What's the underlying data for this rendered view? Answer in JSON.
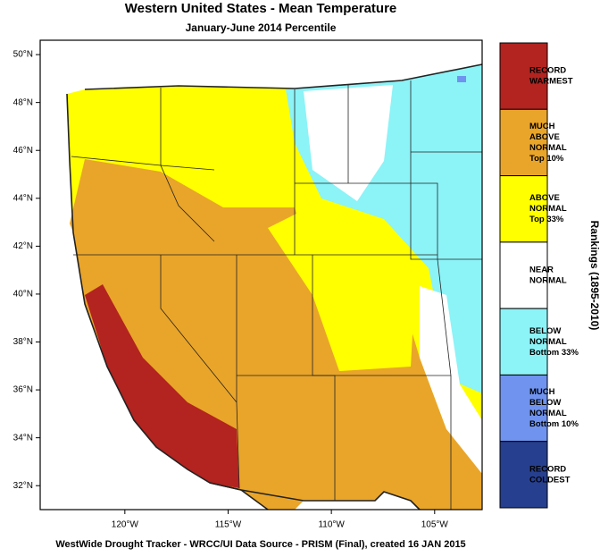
{
  "header": {
    "title": "Western United States - Mean Temperature",
    "subtitle": "January-June 2014 Percentile"
  },
  "map": {
    "lon_range": [
      -124.1,
      -102.7
    ],
    "lat_range": [
      31,
      50.6
    ],
    "lat_ticks": [
      {
        "value": 50,
        "label": "50°N"
      },
      {
        "value": 48,
        "label": "48°N"
      },
      {
        "value": 46,
        "label": "46°N"
      },
      {
        "value": 44,
        "label": "44°N"
      },
      {
        "value": 42,
        "label": "42°N"
      },
      {
        "value": 40,
        "label": "40°N"
      },
      {
        "value": 38,
        "label": "38°N"
      },
      {
        "value": 36,
        "label": "36°N"
      },
      {
        "value": 34,
        "label": "34°N"
      },
      {
        "value": 32,
        "label": "32°N"
      }
    ],
    "lon_ticks": [
      {
        "value": -120,
        "label": "120°W"
      },
      {
        "value": -115,
        "label": "115°W"
      },
      {
        "value": -110,
        "label": "110°W"
      },
      {
        "value": -105,
        "label": "105°W"
      }
    ]
  },
  "legend": {
    "title": "Rankings (1895-2010)",
    "items": [
      {
        "lines": [
          "RECORD",
          "WARMEST"
        ],
        "color": "#b3231f"
      },
      {
        "lines": [
          "MUCH",
          "ABOVE",
          "NORMAL",
          "Top 10%"
        ],
        "color": "#e9a52a"
      },
      {
        "lines": [
          "ABOVE",
          "NORMAL",
          "Top 33%"
        ],
        "color": "#ffff00"
      },
      {
        "lines": [
          "NEAR",
          "NORMAL"
        ],
        "color": "#ffffff"
      },
      {
        "lines": [
          "BELOW",
          "NORMAL",
          "Bottom 33%"
        ],
        "color": "#8cf3f7"
      },
      {
        "lines": [
          "MUCH",
          "BELOW",
          "NORMAL",
          "Bottom 10%"
        ],
        "color": "#6f93ee"
      },
      {
        "lines": [
          "RECORD",
          "COLDEST"
        ],
        "color": "#263f8e"
      }
    ]
  },
  "footer": "WestWide Drought Tracker - WRCC/UI  Data Source - PRISM (Final), created 16 JAN 2015"
}
